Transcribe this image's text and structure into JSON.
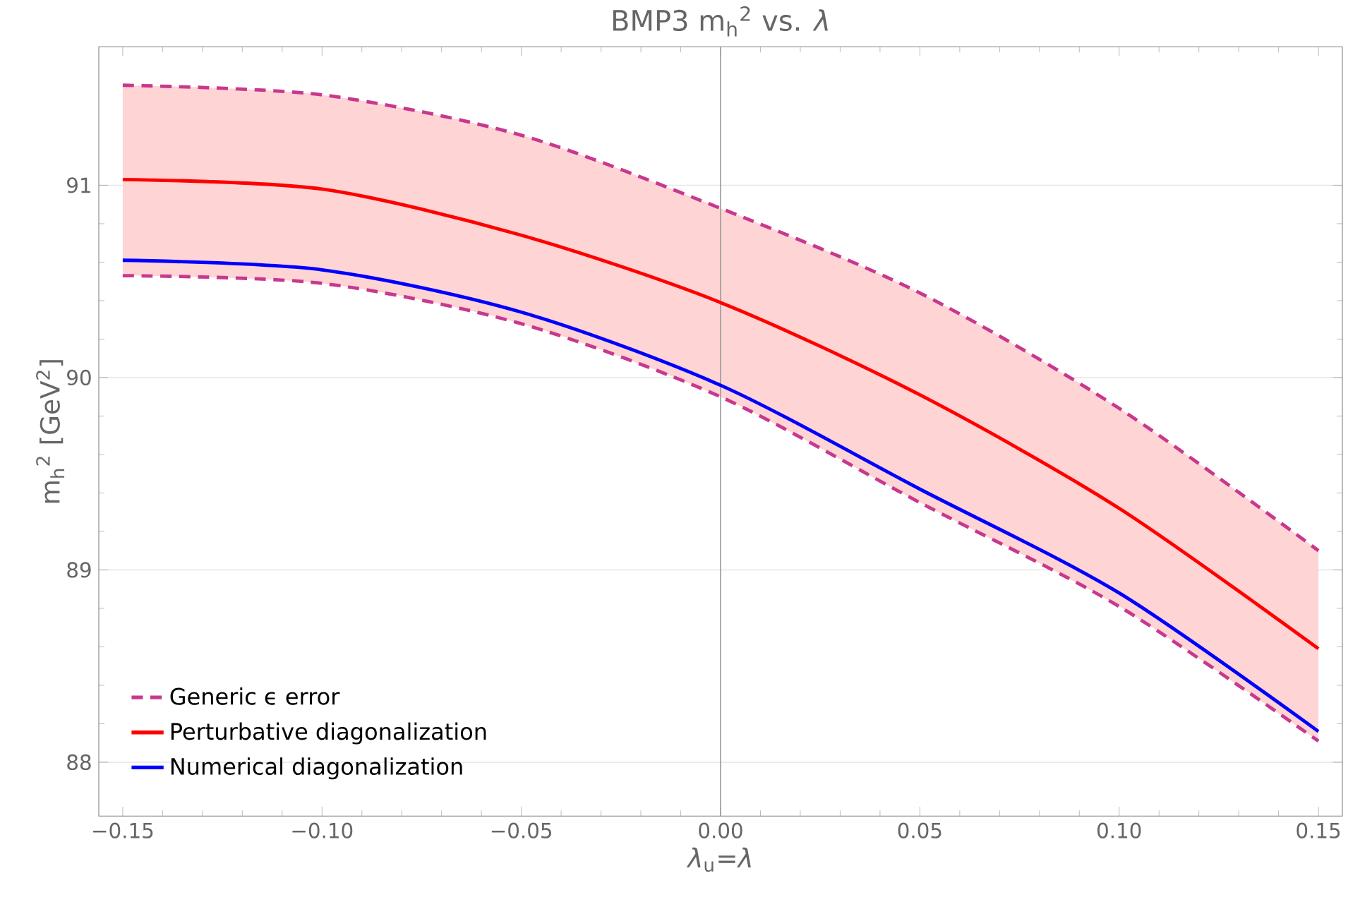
{
  "chart_data": {
    "type": "line",
    "title": "BMP3 m$_{h}$$^{2}$  vs. *λ*",
    "xlabel": "*λ*$_{u}$=*λ*",
    "ylabel": "m$_{h}$$^{2}$ [GeV$^{2}$]",
    "x": [
      -0.15,
      -0.1,
      -0.05,
      0,
      0.05,
      0.1,
      0.15
    ],
    "series": [
      {
        "name": "Generic ϵ error",
        "color": "#c8388f",
        "line_style": "dashed",
        "values": [
          91.52,
          91.47,
          91.26,
          90.88,
          90.44,
          89.84,
          89.1
        ]
      },
      {
        "color": "#c8388f",
        "line_style": "dashed",
        "values": [
          90.53,
          90.49,
          90.28,
          89.9,
          89.35,
          88.81,
          88.11
        ]
      },
      {
        "name": "Perturbative diagonalization",
        "color": "#ff0000",
        "values": [
          91.03,
          90.98,
          90.74,
          90.39,
          89.91,
          89.32,
          88.59
        ],
        "lower": [
          90.53,
          90.49,
          90.28,
          89.9,
          89.35,
          88.81,
          88.11
        ],
        "upper": [
          91.52,
          91.47,
          91.26,
          90.88,
          90.44,
          89.84,
          89.1
        ]
      },
      {
        "name": "Numerical diagonalization",
        "color": "#0000ff",
        "values": [
          90.61,
          90.56,
          90.34,
          89.96,
          89.42,
          88.88,
          88.16
        ]
      }
    ],
    "xlim": [
      -0.156,
      0.156
    ],
    "ylim": [
      87.72,
      91.72
    ],
    "xticks": [
      {
        "value": -0.15,
        "label": "−0.15"
      },
      {
        "value": -0.1,
        "label": "−0.10"
      },
      {
        "value": -0.05,
        "label": "−0.05"
      },
      {
        "value": 0,
        "label": "0.00"
      },
      {
        "value": 0.05,
        "label": "0.05"
      },
      {
        "value": 0.1,
        "label": "0.10"
      },
      {
        "value": 0.15,
        "label": "0.15"
      }
    ],
    "yticks": [
      88,
      89,
      90,
      91
    ],
    "ref_lines": [
      {
        "axis": "x",
        "value": 0,
        "color": "#999999"
      }
    ],
    "grid": "y",
    "legend": "bottom left",
    "line_style": "solid",
    "marker": "none"
  }
}
